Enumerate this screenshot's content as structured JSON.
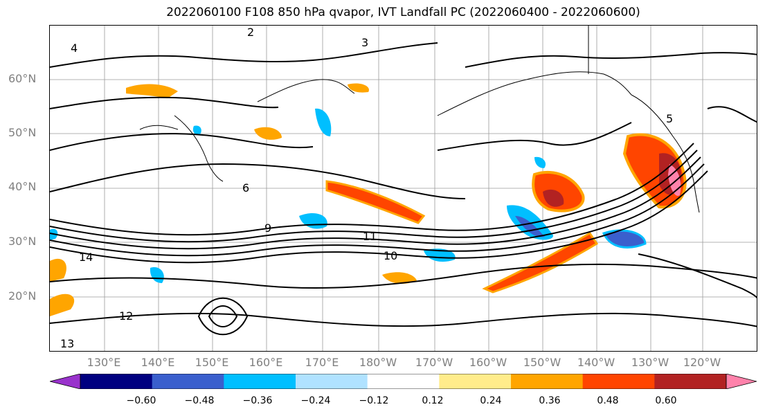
{
  "title": "2022060100 F108 850 hPa qvapor, IVT Landfall PC (2022060400 - 2022060600)",
  "map": {
    "lat_labels": [
      "60°N",
      "50°N",
      "40°N",
      "30°N",
      "20°N"
    ],
    "lon_labels": [
      "130°E",
      "140°E",
      "150°E",
      "160°E",
      "170°E",
      "180°W",
      "170°W",
      "160°W",
      "150°W",
      "140°W",
      "130°W",
      "120°W"
    ],
    "contour_labels": [
      "2",
      "3",
      "4",
      "5",
      "6",
      "9",
      "10",
      "11",
      "12",
      "13",
      "14"
    ]
  },
  "colorbar": {
    "colors": [
      "#9932cc",
      "#000080",
      "#3a5fcd",
      "#00bfff",
      "#b0e2ff",
      "#ffffff",
      "#ffec8b",
      "#ffa500",
      "#ff4500",
      "#b22222",
      "#ff82ab"
    ],
    "tick_labels": [
      "−0.60",
      "−0.48",
      "−0.36",
      "−0.24",
      "−0.12",
      "0.12",
      "0.24",
      "0.36",
      "0.48",
      "0.60"
    ]
  }
}
